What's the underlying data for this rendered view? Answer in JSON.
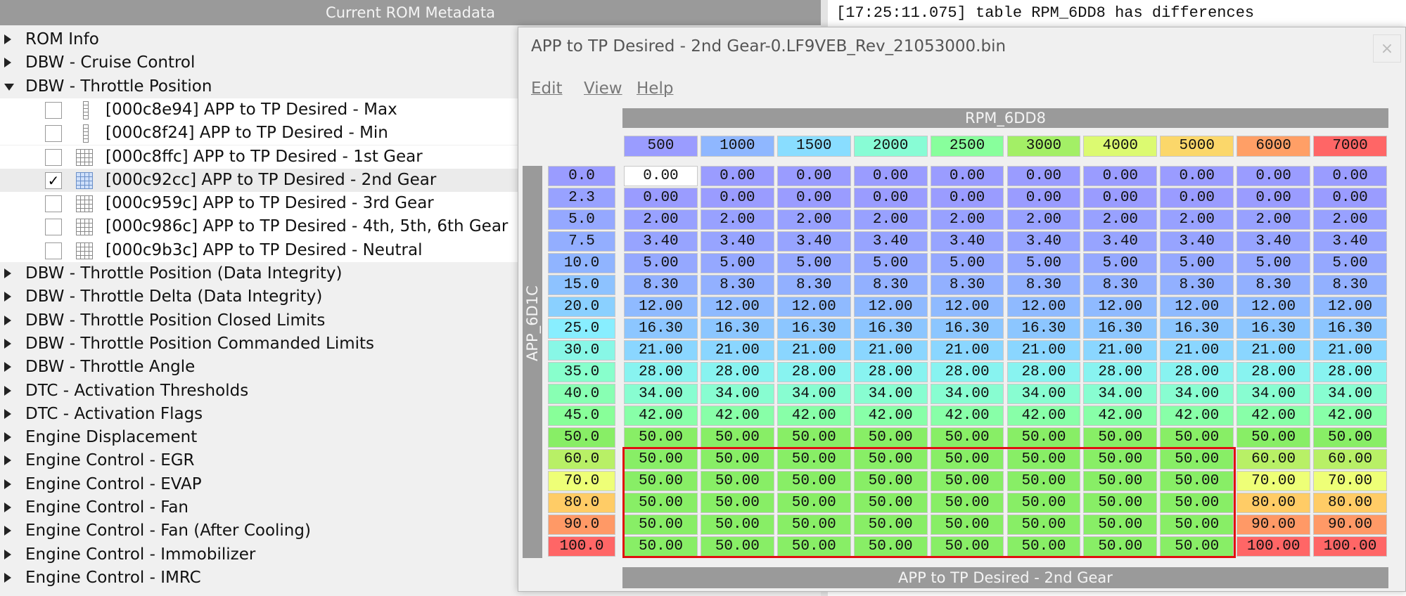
{
  "header": {
    "title": "Current ROM Metadata"
  },
  "log": {
    "line": "[17:25:11.075] table RPM_6DD8 has differences"
  },
  "tree": {
    "items": [
      {
        "label": "ROM Info"
      },
      {
        "label": "DBW - Cruise Control"
      },
      {
        "label": "DBW - Throttle Position",
        "expanded": true,
        "children": [
          {
            "label": "[000c8e94] APP to TP Desired - Max",
            "kind": "1d",
            "checked": false
          },
          {
            "label": "[000c8f24] APP to TP Desired - Min",
            "kind": "1d",
            "checked": false
          },
          {
            "label": "[000c8ffc] APP to TP Desired - 1st Gear",
            "kind": "2d",
            "checked": false
          },
          {
            "label": "[000c92cc] APP to TP Desired - 2nd Gear",
            "kind": "2d",
            "checked": true
          },
          {
            "label": "[000c959c] APP to TP Desired - 3rd Gear",
            "kind": "2d",
            "checked": false
          },
          {
            "label": "[000c986c] APP to TP Desired - 4th, 5th, 6th Gear",
            "kind": "2d",
            "checked": false
          },
          {
            "label": "[000c9b3c] APP to TP Desired - Neutral",
            "kind": "2d",
            "checked": false
          }
        ]
      },
      {
        "label": "DBW - Throttle Position (Data Integrity)"
      },
      {
        "label": "DBW - Throttle Delta (Data Integrity)"
      },
      {
        "label": "DBW - Throttle Position Closed Limits"
      },
      {
        "label": "DBW - Throttle Position Commanded Limits"
      },
      {
        "label": "DBW - Throttle Angle"
      },
      {
        "label": "DTC - Activation Thresholds"
      },
      {
        "label": "DTC - Activation Flags"
      },
      {
        "label": "Engine Displacement"
      },
      {
        "label": "Engine Control - EGR"
      },
      {
        "label": "Engine Control - EVAP"
      },
      {
        "label": "Engine Control - Fan"
      },
      {
        "label": "Engine Control - Fan (After Cooling)"
      },
      {
        "label": "Engine Control - Immobilizer"
      },
      {
        "label": "Engine Control - IMRC"
      }
    ]
  },
  "window": {
    "title": "APP to TP Desired - 2nd Gear-0.LF9VEB_Rev_21053000.bin",
    "close": "×",
    "menu": [
      "Edit",
      "View",
      "Help"
    ],
    "table": {
      "x_axis_name": "RPM_6DD8",
      "y_axis_name": "APP_6D1C",
      "footer": "APP to TP Desired - 2nd Gear",
      "columns": [
        "500",
        "1000",
        "1500",
        "2000",
        "2500",
        "3000",
        "4000",
        "5000",
        "6000",
        "7000"
      ],
      "row_labels": [
        "0.0",
        "2.3",
        "5.0",
        "7.5",
        "10.0",
        "15.0",
        "20.0",
        "25.0",
        "30.0",
        "35.0",
        "40.0",
        "45.0",
        "50.0",
        "60.0",
        "70.0",
        "80.0",
        "90.0",
        "100.0"
      ],
      "rows": [
        [
          "0.00",
          "0.00",
          "0.00",
          "0.00",
          "0.00",
          "0.00",
          "0.00",
          "0.00",
          "0.00",
          "0.00"
        ],
        [
          "0.00",
          "0.00",
          "0.00",
          "0.00",
          "0.00",
          "0.00",
          "0.00",
          "0.00",
          "0.00",
          "0.00"
        ],
        [
          "2.00",
          "2.00",
          "2.00",
          "2.00",
          "2.00",
          "2.00",
          "2.00",
          "2.00",
          "2.00",
          "2.00"
        ],
        [
          "3.40",
          "3.40",
          "3.40",
          "3.40",
          "3.40",
          "3.40",
          "3.40",
          "3.40",
          "3.40",
          "3.40"
        ],
        [
          "5.00",
          "5.00",
          "5.00",
          "5.00",
          "5.00",
          "5.00",
          "5.00",
          "5.00",
          "5.00",
          "5.00"
        ],
        [
          "8.30",
          "8.30",
          "8.30",
          "8.30",
          "8.30",
          "8.30",
          "8.30",
          "8.30",
          "8.30",
          "8.30"
        ],
        [
          "12.00",
          "12.00",
          "12.00",
          "12.00",
          "12.00",
          "12.00",
          "12.00",
          "12.00",
          "12.00",
          "12.00"
        ],
        [
          "16.30",
          "16.30",
          "16.30",
          "16.30",
          "16.30",
          "16.30",
          "16.30",
          "16.30",
          "16.30",
          "16.30"
        ],
        [
          "21.00",
          "21.00",
          "21.00",
          "21.00",
          "21.00",
          "21.00",
          "21.00",
          "21.00",
          "21.00",
          "21.00"
        ],
        [
          "28.00",
          "28.00",
          "28.00",
          "28.00",
          "28.00",
          "28.00",
          "28.00",
          "28.00",
          "28.00",
          "28.00"
        ],
        [
          "34.00",
          "34.00",
          "34.00",
          "34.00",
          "34.00",
          "34.00",
          "34.00",
          "34.00",
          "34.00",
          "34.00"
        ],
        [
          "42.00",
          "42.00",
          "42.00",
          "42.00",
          "42.00",
          "42.00",
          "42.00",
          "42.00",
          "42.00",
          "42.00"
        ],
        [
          "50.00",
          "50.00",
          "50.00",
          "50.00",
          "50.00",
          "50.00",
          "50.00",
          "50.00",
          "50.00",
          "50.00"
        ],
        [
          "50.00",
          "50.00",
          "50.00",
          "50.00",
          "50.00",
          "50.00",
          "50.00",
          "50.00",
          "60.00",
          "60.00"
        ],
        [
          "50.00",
          "50.00",
          "50.00",
          "50.00",
          "50.00",
          "50.00",
          "50.00",
          "50.00",
          "70.00",
          "70.00"
        ],
        [
          "50.00",
          "50.00",
          "50.00",
          "50.00",
          "50.00",
          "50.00",
          "50.00",
          "50.00",
          "80.00",
          "80.00"
        ],
        [
          "50.00",
          "50.00",
          "50.00",
          "50.00",
          "50.00",
          "50.00",
          "50.00",
          "50.00",
          "90.00",
          "90.00"
        ],
        [
          "50.00",
          "50.00",
          "50.00",
          "50.00",
          "50.00",
          "50.00",
          "50.00",
          "50.00",
          "100.00",
          "100.00"
        ]
      ]
    }
  }
}
